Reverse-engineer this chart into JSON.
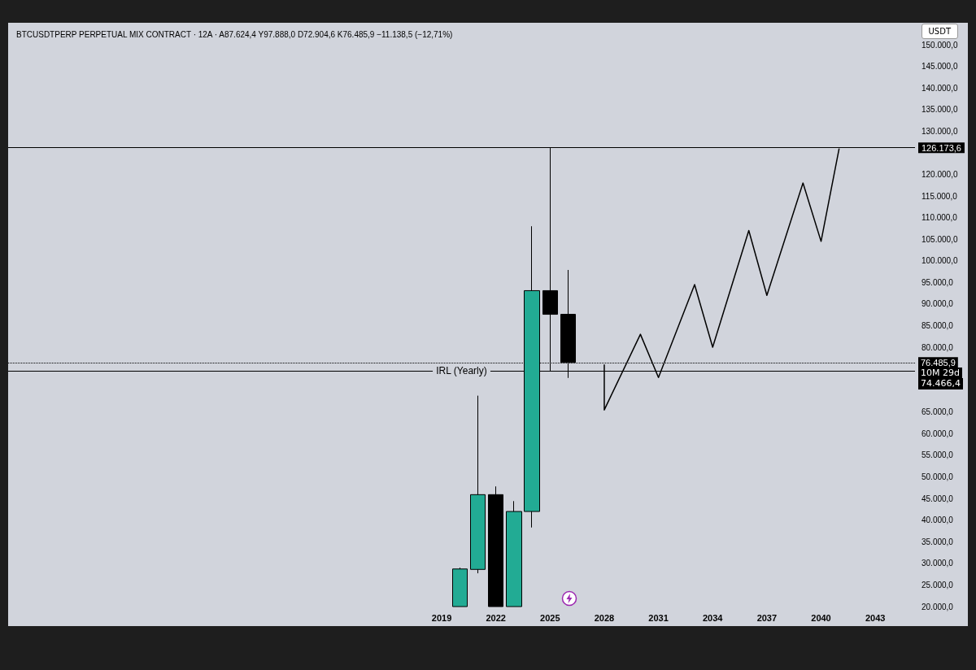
{
  "chart_data": {
    "type": "candlestick",
    "title": "BTCUSDTPERP PERPETUAL MIX CONTRACT · 12A · A87.624,4 Y97.888,0 D72.904,6 K76.485,9 −11.138,5 (−12,71%)",
    "x": [
      2020,
      2021,
      2022,
      2023,
      2024,
      2025,
      2026
    ],
    "ohlc": [
      [
        20000,
        29000,
        20000,
        28700
      ],
      [
        28600,
        68800,
        27700,
        45900
      ],
      [
        45900,
        47800,
        20000,
        20000
      ],
      [
        20000,
        44400,
        20000,
        42000
      ],
      [
        42000,
        108000,
        38300,
        93100
      ],
      [
        93100,
        126173.6,
        74466.4,
        87624.4
      ],
      [
        87624.4,
        97888,
        72904.6,
        76485.9
      ]
    ],
    "colors": [
      "#22ab94",
      "#22ab94",
      "#000000",
      "#22ab94",
      "#22ab94",
      "#000000",
      "#000000"
    ],
    "series": [
      {
        "type": "line",
        "color": "#000000",
        "x": [
          2028,
          2028,
          2030,
          2031,
          2033,
          2034,
          2036,
          2037,
          2039,
          2040,
          2041
        ],
        "values": [
          76000,
          65500,
          83000,
          73000,
          94500,
          80000,
          107000,
          92000,
          118000,
          104500,
          126000
        ]
      }
    ],
    "xlim": [
      1995,
      2045.2
    ],
    "xticks": [
      2019,
      2022,
      2025,
      2028,
      2031,
      2034,
      2037,
      2040,
      2043
    ],
    "ylim": [
      20000,
      150000
    ],
    "yticks": [
      {
        "value": 20000,
        "label": "20.000,0"
      },
      {
        "value": 25000,
        "label": "25.000,0"
      },
      {
        "value": 30000,
        "label": "30.000,0"
      },
      {
        "value": 35000,
        "label": "35.000,0"
      },
      {
        "value": 40000,
        "label": "40.000,0"
      },
      {
        "value": 45000,
        "label": "45.000,0"
      },
      {
        "value": 50000,
        "label": "50.000,0"
      },
      {
        "value": 55000,
        "label": "55.000,0"
      },
      {
        "value": 60000,
        "label": "60.000,0"
      },
      {
        "value": 65000,
        "label": "65.000,0"
      },
      {
        "value": 80000,
        "label": "80.000,0"
      },
      {
        "value": 85000,
        "label": "85.000,0"
      },
      {
        "value": 90000,
        "label": "90.000,0"
      },
      {
        "value": 95000,
        "label": "95.000,0"
      },
      {
        "value": 100000,
        "label": "100.000,0"
      },
      {
        "value": 105000,
        "label": "105.000,0"
      },
      {
        "value": 110000,
        "label": "110.000,0"
      },
      {
        "value": 115000,
        "label": "115.000,0"
      },
      {
        "value": 120000,
        "label": "120.000,0"
      },
      {
        "value": 130000,
        "label": "130.000,0"
      },
      {
        "value": 135000,
        "label": "135.000,0"
      },
      {
        "value": 140000,
        "label": "140.000,0"
      },
      {
        "value": 145000,
        "label": "145.000,0"
      },
      {
        "value": 150000,
        "label": "150.000,0"
      }
    ],
    "ref_lines": [
      {
        "axis": "y",
        "value": 126173.6,
        "label": "126.173,6",
        "color": "#000000"
      },
      {
        "axis": "y",
        "value": 76485.9,
        "label": "76.485,9",
        "line_style": "dotted",
        "color": "#000000"
      },
      {
        "axis": "y",
        "value": 74466.4,
        "label": "IRL (Yearly)",
        "color": "#000000"
      }
    ],
    "annotations": [
      "USDT",
      "10M 29d",
      "74.466,4"
    ],
    "grid": false
  }
}
